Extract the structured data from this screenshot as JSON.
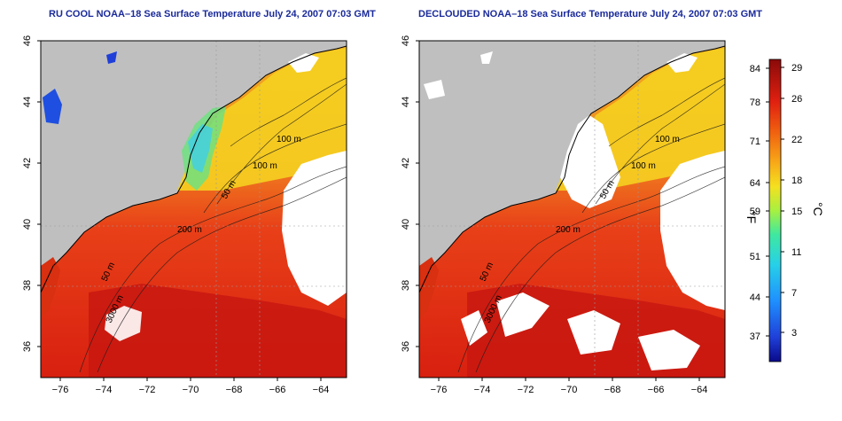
{
  "panels": [
    {
      "title": "RU COOL NOAA–18 Sea Surface Temperature July 24, 2007 07:03 GMT",
      "contour_labels": [
        "100 m",
        "100 m",
        "50 m",
        "200 m",
        "50 m",
        "3000 m"
      ]
    },
    {
      "title": "DECLOUDED NOAA–18 Sea Surface Temperature July 24, 2007 07:03 GMT",
      "contour_labels": [
        "100 m",
        "100 m",
        "50 m",
        "200 m",
        "50 m",
        "3000 m"
      ]
    }
  ],
  "axes": {
    "x_ticks": [
      "−76",
      "−74",
      "−72",
      "−70",
      "−68",
      "−66",
      "−64"
    ],
    "y_ticks": [
      "46",
      "44",
      "42",
      "40",
      "38",
      "36"
    ]
  },
  "colorbar": {
    "f_label": "°F",
    "c_label": "°C",
    "f_ticks": [
      "84",
      "78",
      "71",
      "64",
      "59",
      "51",
      "44",
      "37"
    ],
    "c_ticks": [
      "29",
      "26",
      "22",
      "18",
      "15",
      "11",
      "7",
      "3"
    ],
    "colors": [
      "#0a0a8a",
      "#1f3fd8",
      "#1f8fff",
      "#27d0e8",
      "#3fe8a0",
      "#a8f040",
      "#f5e020",
      "#f8a818",
      "#f06010",
      "#e02010",
      "#b01010",
      "#7a0a0a"
    ]
  },
  "palette": {
    "land": "#bfbfbf",
    "cloud": "#ffffff",
    "coast": "#000000"
  }
}
